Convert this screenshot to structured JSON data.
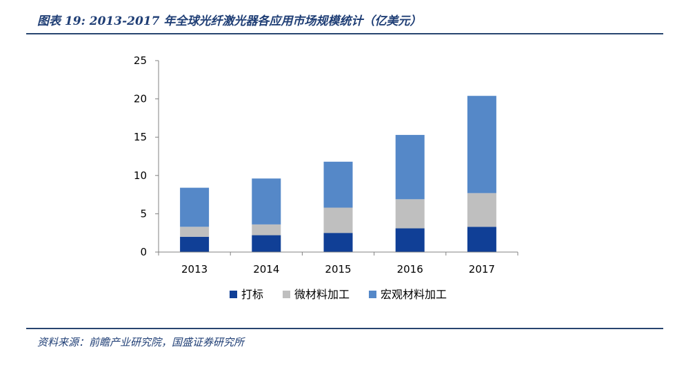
{
  "header": {
    "title": "图表 19: 2013-2017 年全球光纤激光器各应用市场规模统计（亿美元）"
  },
  "footer": {
    "source": "资料来源：前瞻产业研究院，国盛证券研究所"
  },
  "chart_data": {
    "type": "bar",
    "stacked": true,
    "title": "",
    "xlabel": "",
    "ylabel": "",
    "categories": [
      "2013",
      "2014",
      "2015",
      "2016",
      "2017"
    ],
    "ylim": [
      0,
      25
    ],
    "yticks": [
      0,
      5,
      10,
      15,
      20,
      25
    ],
    "grid": false,
    "legend_position": "bottom",
    "series": [
      {
        "name": "打标",
        "color": "#103f96",
        "values": [
          2.0,
          2.2,
          2.5,
          3.1,
          3.3
        ]
      },
      {
        "name": "微材料加工",
        "color": "#bfbfbf",
        "values": [
          1.3,
          1.4,
          3.3,
          3.8,
          4.4
        ]
      },
      {
        "name": "宏观材料加工",
        "color": "#5588c8",
        "values": [
          5.1,
          6.0,
          6.0,
          8.4,
          12.7
        ]
      }
    ]
  }
}
